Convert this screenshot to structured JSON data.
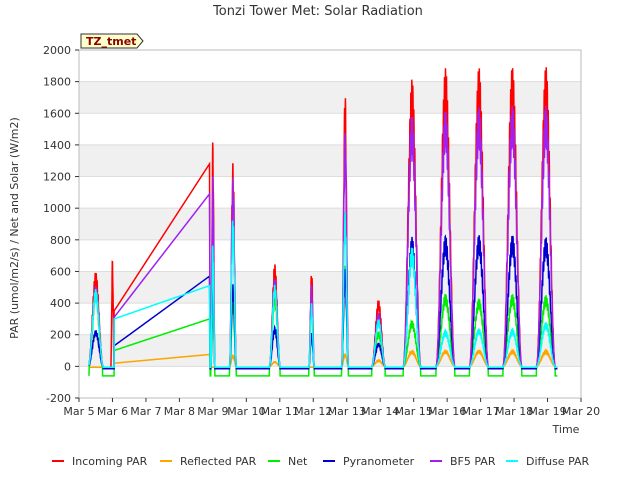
{
  "chart_data": {
    "type": "line",
    "title": "Tonzi Tower Met: Solar Radiation",
    "tag": "TZ_tmet",
    "xlabel": "Time",
    "ylabel": "PAR (umol/m2/s) / Net and Solar (W/m2)",
    "xlim": [
      5,
      20
    ],
    "ylim": [
      -200,
      2000
    ],
    "x_ticks": [
      5,
      6,
      7,
      8,
      9,
      10,
      11,
      12,
      13,
      14,
      15,
      16,
      17,
      18,
      19,
      20
    ],
    "x_tick_labels": [
      "Mar 5",
      "Mar 6",
      "Mar 7",
      "Mar 8",
      "Mar 9",
      "Mar 10",
      "Mar 11",
      "Mar 12",
      "Mar 13",
      "Mar 14",
      "Mar 15",
      "Mar 16",
      "Mar 17",
      "Mar 18",
      "Mar 19",
      "Mar 20"
    ],
    "y_ticks": [
      -200,
      0,
      200,
      400,
      600,
      800,
      1000,
      1200,
      1400,
      1600,
      1800,
      2000
    ],
    "y_tick_labels": [
      "-200",
      "0",
      "200",
      "400",
      "600",
      "800",
      "1000",
      "1200",
      "1400",
      "1600",
      "1800",
      "2000"
    ],
    "legend_position": "bottom",
    "series": [
      {
        "name": "Incoming PAR",
        "color": "#ff0000",
        "night": -10,
        "days": [
          {
            "center": 5.5,
            "peak": 600,
            "width": 0.22
          },
          {
            "center": 6.0,
            "peak": 680,
            "width": 0.05
          },
          {
            "center": 9.0,
            "peak": 1440,
            "width": 0.06
          },
          {
            "center": 9.6,
            "peak": 1300,
            "width": 0.1
          },
          {
            "center": 10.85,
            "peak": 650,
            "width": 0.16
          },
          {
            "center": 11.95,
            "peak": 610,
            "width": 0.08
          },
          {
            "center": 12.95,
            "peak": 1750,
            "width": 0.1
          },
          {
            "center": 13.95,
            "peak": 420,
            "width": 0.2
          },
          {
            "center": 14.95,
            "peak": 1820,
            "width": 0.26
          },
          {
            "center": 15.95,
            "peak": 1890,
            "width": 0.28
          },
          {
            "center": 16.95,
            "peak": 1890,
            "width": 0.28
          },
          {
            "center": 17.95,
            "peak": 1905,
            "width": 0.28
          },
          {
            "center": 18.95,
            "peak": 1900,
            "width": 0.28
          }
        ],
        "gap": [
          [
            6.05,
            350
          ],
          [
            8.9,
            1280
          ]
        ]
      },
      {
        "name": "Reflected PAR",
        "color": "#ffa500",
        "night": -5,
        "days": [
          {
            "center": 9.6,
            "peak": 70,
            "width": 0.1
          },
          {
            "center": 10.85,
            "peak": 30,
            "width": 0.16
          },
          {
            "center": 12.95,
            "peak": 80,
            "width": 0.1
          },
          {
            "center": 13.95,
            "peak": 40,
            "width": 0.2
          },
          {
            "center": 14.95,
            "peak": 100,
            "width": 0.26
          },
          {
            "center": 15.95,
            "peak": 100,
            "width": 0.28
          },
          {
            "center": 16.95,
            "peak": 100,
            "width": 0.28
          },
          {
            "center": 17.95,
            "peak": 100,
            "width": 0.28
          },
          {
            "center": 18.95,
            "peak": 100,
            "width": 0.28
          }
        ],
        "gap": [
          [
            6.05,
            20
          ],
          [
            8.9,
            75
          ]
        ]
      },
      {
        "name": "Net",
        "color": "#00ee00",
        "night": -60,
        "days": [
          {
            "center": 5.5,
            "peak": 500,
            "width": 0.2
          },
          {
            "center": 9.0,
            "peak": 400,
            "width": 0.06
          },
          {
            "center": 9.6,
            "peak": 420,
            "width": 0.1
          },
          {
            "center": 10.85,
            "peak": 460,
            "width": 0.16
          },
          {
            "center": 11.95,
            "peak": 400,
            "width": 0.08
          },
          {
            "center": 12.95,
            "peak": 640,
            "width": 0.1
          },
          {
            "center": 13.95,
            "peak": 220,
            "width": 0.2
          },
          {
            "center": 14.95,
            "peak": 290,
            "width": 0.26
          },
          {
            "center": 15.95,
            "peak": 460,
            "width": 0.28
          },
          {
            "center": 16.95,
            "peak": 430,
            "width": 0.28
          },
          {
            "center": 17.95,
            "peak": 460,
            "width": 0.28
          },
          {
            "center": 18.95,
            "peak": 450,
            "width": 0.28
          }
        ],
        "gap": [
          [
            6.05,
            100
          ],
          [
            8.9,
            300
          ]
        ]
      },
      {
        "name": "Pyranometer",
        "color": "#0000cd",
        "night": -15,
        "days": [
          {
            "center": 5.5,
            "peak": 230,
            "width": 0.22
          },
          {
            "center": 9.0,
            "peak": 620,
            "width": 0.06
          },
          {
            "center": 9.6,
            "peak": 520,
            "width": 0.1
          },
          {
            "center": 10.85,
            "peak": 250,
            "width": 0.16
          },
          {
            "center": 11.95,
            "peak": 220,
            "width": 0.08
          },
          {
            "center": 12.95,
            "peak": 630,
            "width": 0.1
          },
          {
            "center": 13.95,
            "peak": 150,
            "width": 0.2
          },
          {
            "center": 14.95,
            "peak": 820,
            "width": 0.26
          },
          {
            "center": 15.95,
            "peak": 830,
            "width": 0.28
          },
          {
            "center": 16.95,
            "peak": 835,
            "width": 0.28
          },
          {
            "center": 17.95,
            "peak": 835,
            "width": 0.28
          },
          {
            "center": 18.95,
            "peak": 820,
            "width": 0.28
          }
        ],
        "gap": [
          [
            6.05,
            130
          ],
          [
            8.9,
            570
          ]
        ]
      },
      {
        "name": "BF5 PAR",
        "color": "#a020f0",
        "night": -5,
        "days": [
          {
            "center": 5.5,
            "peak": 510,
            "width": 0.22
          },
          {
            "center": 9.0,
            "peak": 1220,
            "width": 0.06
          },
          {
            "center": 9.6,
            "peak": 1200,
            "width": 0.1
          },
          {
            "center": 10.85,
            "peak": 560,
            "width": 0.16
          },
          {
            "center": 11.95,
            "peak": 520,
            "width": 0.08
          },
          {
            "center": 12.95,
            "peak": 1490,
            "width": 0.1
          },
          {
            "center": 13.95,
            "peak": 340,
            "width": 0.2
          },
          {
            "center": 14.95,
            "peak": 1590,
            "width": 0.26
          },
          {
            "center": 15.95,
            "peak": 1630,
            "width": 0.28
          },
          {
            "center": 16.95,
            "peak": 1640,
            "width": 0.28
          },
          {
            "center": 17.95,
            "peak": 1650,
            "width": 0.28
          },
          {
            "center": 18.95,
            "peak": 1650,
            "width": 0.28
          }
        ],
        "gap": [
          [
            6.05,
            310
          ],
          [
            8.9,
            1090
          ]
        ]
      },
      {
        "name": "Diffuse PAR",
        "color": "#00ffff",
        "night": -5,
        "days": [
          {
            "center": 5.5,
            "peak": 490,
            "width": 0.22
          },
          {
            "center": 9.0,
            "peak": 800,
            "width": 0.06
          },
          {
            "center": 9.6,
            "peak": 950,
            "width": 0.1
          },
          {
            "center": 10.85,
            "peak": 520,
            "width": 0.16
          },
          {
            "center": 11.95,
            "peak": 400,
            "width": 0.08
          },
          {
            "center": 12.95,
            "peak": 980,
            "width": 0.1
          },
          {
            "center": 13.95,
            "peak": 300,
            "width": 0.2
          },
          {
            "center": 14.95,
            "peak": 760,
            "width": 0.26
          },
          {
            "center": 15.95,
            "peak": 230,
            "width": 0.28
          },
          {
            "center": 16.95,
            "peak": 240,
            "width": 0.28
          },
          {
            "center": 17.95,
            "peak": 240,
            "width": 0.28
          },
          {
            "center": 18.95,
            "peak": 280,
            "width": 0.28
          }
        ],
        "gap": [
          [
            6.05,
            300
          ],
          [
            8.9,
            510
          ]
        ]
      }
    ]
  }
}
